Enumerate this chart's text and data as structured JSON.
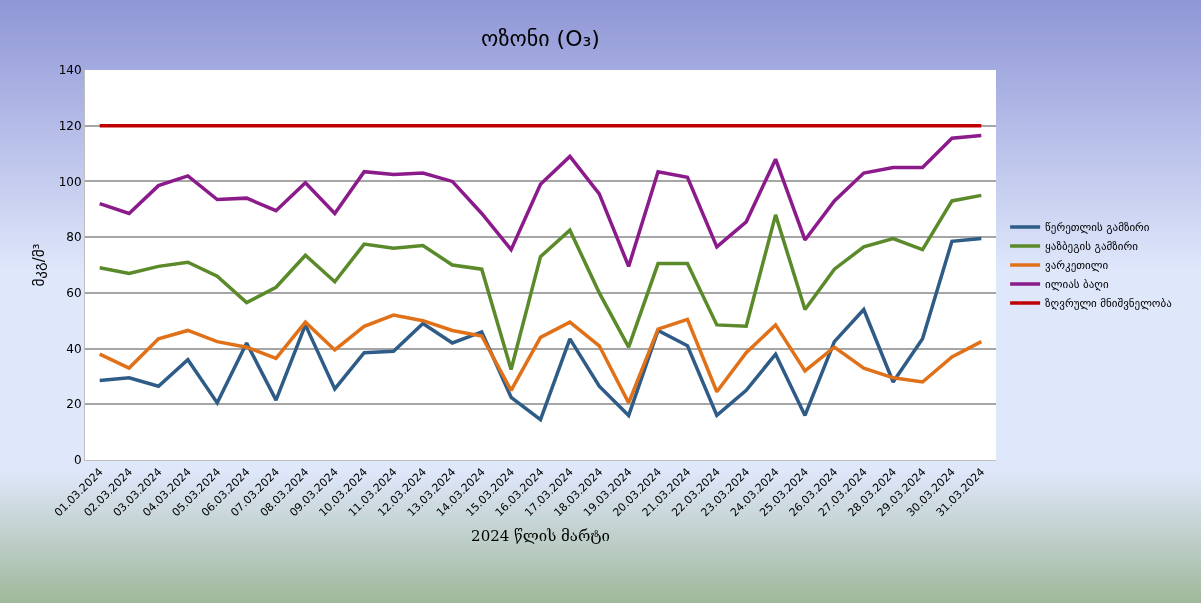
{
  "chart_data": {
    "type": "line",
    "title": "ოზონი (O₃)",
    "ylabel": "მკგ/მ³",
    "xlabel": "2024 წლის მარტი",
    "categories": [
      "01.03.2024",
      "02.03.2024",
      "03.03.2024",
      "04.03.2024",
      "05.03.2024",
      "06.03.2024",
      "07.03.2024",
      "08.03.2024",
      "09.03.2024",
      "10.03.2024",
      "11.03.2024",
      "12.03.2024",
      "13.03.2024",
      "14.03.2024",
      "15.03.2024",
      "16.03.2024",
      "17.03.2024",
      "18.03.2024",
      "19.03.2024",
      "20.03.2024",
      "21.03.2024",
      "22.03.2024",
      "23.03.2024",
      "24.03.2024",
      "25.03.2024",
      "26.03.2024",
      "27.03.2024",
      "28.03.2024",
      "29.03.2024",
      "30.03.2024",
      "31.03.2024"
    ],
    "series": [
      {
        "name": "წერეთლის გამზირი",
        "color": "#2e5c87",
        "values": [
          28.5,
          29.5,
          26.5,
          36,
          20.5,
          42,
          21.5,
          48.5,
          25.5,
          38.5,
          39,
          49,
          42,
          46,
          22.5,
          14.5,
          43.5,
          26.5,
          16,
          46.5,
          41,
          16,
          25,
          38,
          16,
          42.5,
          54,
          28,
          43.5,
          78.5,
          79.5
        ]
      },
      {
        "name": "ყაზბეგის გამზირი",
        "color": "#5a8a2a",
        "values": [
          69,
          67,
          69.5,
          71,
          66,
          56.5,
          62,
          73.5,
          64,
          77.5,
          76,
          77,
          70,
          68.5,
          32.5,
          73,
          82.5,
          60,
          40.5,
          70.5,
          70.5,
          48.5,
          48,
          88,
          54,
          68.5,
          76.5,
          79.5,
          75.5,
          93,
          95
        ]
      },
      {
        "name": "ვარკეთილი",
        "color": "#e07118",
        "values": [
          38,
          33,
          43.5,
          46.5,
          42.5,
          40.5,
          36.5,
          49.5,
          39.5,
          48,
          52,
          50,
          46.5,
          44.5,
          25,
          44,
          49.5,
          41,
          20.5,
          47,
          50.5,
          24.5,
          38.5,
          48.5,
          32,
          40.5,
          33,
          29.5,
          28,
          37,
          42.5
        ]
      },
      {
        "name": "ილიას ბაღი",
        "color": "#8b1a8b",
        "values": [
          92,
          88.5,
          98.5,
          102,
          93.5,
          94,
          89.5,
          99.5,
          88.5,
          103.5,
          102.5,
          103,
          100,
          88.5,
          75.5,
          99,
          109,
          95.5,
          69.5,
          103.5,
          101.5,
          76.5,
          85.5,
          108,
          79,
          93,
          103,
          105,
          105,
          115.5,
          116.5
        ]
      },
      {
        "name": "ზღვრული მნიშვნელობა",
        "color": "#c00000",
        "values": [
          120,
          120,
          120,
          120,
          120,
          120,
          120,
          120,
          120,
          120,
          120,
          120,
          120,
          120,
          120,
          120,
          120,
          120,
          120,
          120,
          120,
          120,
          120,
          120,
          120,
          120,
          120,
          120,
          120,
          120,
          120
        ]
      }
    ],
    "ylim": [
      0,
      140
    ],
    "yticks": [
      0,
      20,
      40,
      60,
      80,
      100,
      120,
      140
    ],
    "grid": "y",
    "legend": "right",
    "marker": "none",
    "line_style": "solid"
  }
}
